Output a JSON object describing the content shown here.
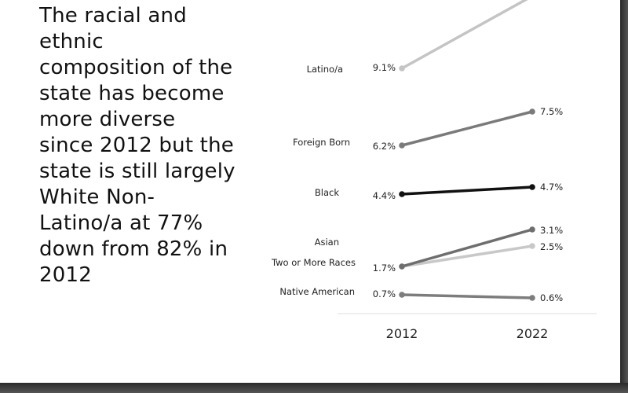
{
  "headline": "The racial and ethnic composition of the state has become more diverse since 2012 but the state is still largely White Non-Latino/a at 77% down from 82% in 2012",
  "chart_data": {
    "type": "line",
    "x": [
      "2012",
      "2022"
    ],
    "series": [
      {
        "name": "Latino/a",
        "values": [
          9.1,
          null
        ],
        "color": "#c4c4c4",
        "start_label": "9.1%",
        "end_label": ""
      },
      {
        "name": "Foreign Born",
        "values": [
          6.2,
          7.5
        ],
        "color": "#7a7a7a",
        "start_label": "6.2%",
        "end_label": "7.5%"
      },
      {
        "name": "Black",
        "values": [
          4.4,
          4.7
        ],
        "color": "#111111",
        "start_label": "4.4%",
        "end_label": "4.7%"
      },
      {
        "name": "Asian",
        "values": [
          1.7,
          3.1
        ],
        "color": "#6e6e6e",
        "start_label": "",
        "end_label": "3.1%"
      },
      {
        "name": "Two or More Races",
        "values": [
          1.7,
          2.5
        ],
        "color": "#c8c8c8",
        "start_label": "1.7%",
        "end_label": "2.5%"
      },
      {
        "name": "Native American",
        "values": [
          0.7,
          0.6
        ],
        "color": "#7d7d7d",
        "start_label": "0.7%",
        "end_label": "0.6%"
      }
    ],
    "xlabel": "",
    "ylabel": "",
    "grid": false,
    "legend": "labels-left"
  }
}
